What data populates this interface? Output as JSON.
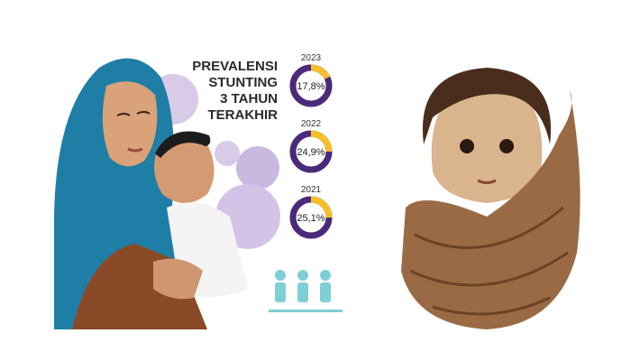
{
  "title_lines": [
    "PREVALENSI",
    "STUNTING",
    "3 TAHUN",
    "TERAKHIR"
  ],
  "stats": [
    {
      "year": "2023",
      "value": 17.8,
      "value_label": "17,8%"
    },
    {
      "year": "2022",
      "value": 24.9,
      "value_label": "24,9%"
    },
    {
      "year": "2021",
      "value": 25.1,
      "value_label": "25,1%"
    }
  ]
}
